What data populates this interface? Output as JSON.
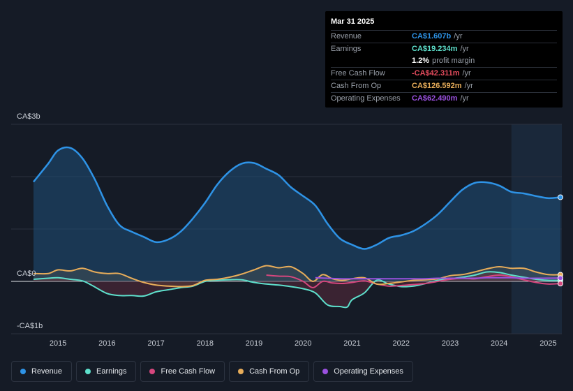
{
  "chart_data": {
    "type": "area",
    "currency": "CA$",
    "y_labels": {
      "top": "CA$3b",
      "zero": "CA$0",
      "bottom": "-CA$1b"
    },
    "ylim": [
      -1.0,
      3.0
    ],
    "xlim": [
      2014.5,
      2025.25
    ],
    "x_ticks": [
      {
        "value": 2015,
        "label": "2015"
      },
      {
        "value": 2016,
        "label": "2016"
      },
      {
        "value": 2017,
        "label": "2017"
      },
      {
        "value": 2018,
        "label": "2018"
      },
      {
        "value": 2019,
        "label": "2019"
      },
      {
        "value": 2020,
        "label": "2020"
      },
      {
        "value": 2021,
        "label": "2021"
      },
      {
        "value": 2022,
        "label": "2022"
      },
      {
        "value": 2023,
        "label": "2023"
      },
      {
        "value": 2024,
        "label": "2024"
      },
      {
        "value": 2025,
        "label": "2025"
      }
    ],
    "highlight_range": [
      2024.25,
      2025.25
    ],
    "series": [
      {
        "name": "Revenue",
        "color": "#2e93e6",
        "fill": true,
        "points": [
          [
            2014.5,
            1.9
          ],
          [
            2014.8,
            2.25
          ],
          [
            2015.0,
            2.5
          ],
          [
            2015.25,
            2.55
          ],
          [
            2015.5,
            2.35
          ],
          [
            2015.75,
            1.95
          ],
          [
            2016.0,
            1.45
          ],
          [
            2016.25,
            1.08
          ],
          [
            2016.5,
            0.95
          ],
          [
            2016.75,
            0.85
          ],
          [
            2017.0,
            0.75
          ],
          [
            2017.25,
            0.8
          ],
          [
            2017.5,
            0.95
          ],
          [
            2017.75,
            1.2
          ],
          [
            2018.0,
            1.5
          ],
          [
            2018.25,
            1.85
          ],
          [
            2018.5,
            2.1
          ],
          [
            2018.75,
            2.25
          ],
          [
            2019.0,
            2.26
          ],
          [
            2019.25,
            2.15
          ],
          [
            2019.5,
            2.03
          ],
          [
            2019.75,
            1.8
          ],
          [
            2020.0,
            1.63
          ],
          [
            2020.25,
            1.45
          ],
          [
            2020.5,
            1.1
          ],
          [
            2020.75,
            0.82
          ],
          [
            2021.0,
            0.7
          ],
          [
            2021.25,
            0.62
          ],
          [
            2021.5,
            0.7
          ],
          [
            2021.75,
            0.83
          ],
          [
            2022.0,
            0.88
          ],
          [
            2022.25,
            0.96
          ],
          [
            2022.5,
            1.1
          ],
          [
            2022.75,
            1.28
          ],
          [
            2023.0,
            1.52
          ],
          [
            2023.25,
            1.75
          ],
          [
            2023.5,
            1.88
          ],
          [
            2023.75,
            1.89
          ],
          [
            2024.0,
            1.83
          ],
          [
            2024.25,
            1.71
          ],
          [
            2024.5,
            1.68
          ],
          [
            2024.75,
            1.63
          ],
          [
            2025.0,
            1.59
          ],
          [
            2025.25,
            1.607
          ]
        ]
      },
      {
        "name": "Earnings",
        "color": "#5ee0cc",
        "fill": true,
        "points": [
          [
            2014.5,
            0.04
          ],
          [
            2014.8,
            0.06
          ],
          [
            2015.0,
            0.07
          ],
          [
            2015.25,
            0.04
          ],
          [
            2015.5,
            0.01
          ],
          [
            2015.7,
            -0.08
          ],
          [
            2016.0,
            -0.23
          ],
          [
            2016.25,
            -0.27
          ],
          [
            2016.5,
            -0.27
          ],
          [
            2016.75,
            -0.28
          ],
          [
            2017.0,
            -0.2
          ],
          [
            2017.25,
            -0.16
          ],
          [
            2017.5,
            -0.12
          ],
          [
            2017.75,
            -0.09
          ],
          [
            2018.0,
            0.0
          ],
          [
            2018.25,
            0.02
          ],
          [
            2018.5,
            0.03
          ],
          [
            2018.75,
            0.03
          ],
          [
            2019.0,
            -0.02
          ],
          [
            2019.25,
            -0.05
          ],
          [
            2019.5,
            -0.07
          ],
          [
            2019.75,
            -0.1
          ],
          [
            2020.0,
            -0.14
          ],
          [
            2020.25,
            -0.22
          ],
          [
            2020.5,
            -0.45
          ],
          [
            2020.75,
            -0.48
          ],
          [
            2020.9,
            -0.49
          ],
          [
            2021.0,
            -0.35
          ],
          [
            2021.25,
            -0.22
          ],
          [
            2021.5,
            0.02
          ],
          [
            2021.75,
            -0.05
          ],
          [
            2022.0,
            -0.1
          ],
          [
            2022.25,
            -0.09
          ],
          [
            2022.5,
            -0.04
          ],
          [
            2022.75,
            0.02
          ],
          [
            2023.0,
            0.05
          ],
          [
            2023.25,
            0.08
          ],
          [
            2023.5,
            0.12
          ],
          [
            2023.75,
            0.18
          ],
          [
            2024.0,
            0.17
          ],
          [
            2024.25,
            0.12
          ],
          [
            2024.5,
            0.08
          ],
          [
            2024.75,
            0.04
          ],
          [
            2025.0,
            0.02
          ],
          [
            2025.25,
            0.019
          ]
        ]
      },
      {
        "name": "Free Cash Flow",
        "color": "#d6477e",
        "fill": false,
        "points": [
          [
            2019.25,
            0.12
          ],
          [
            2019.5,
            0.1
          ],
          [
            2019.75,
            0.09
          ],
          [
            2020.0,
            0.0
          ],
          [
            2020.2,
            -0.12
          ],
          [
            2020.4,
            0.0
          ],
          [
            2020.6,
            -0.03
          ],
          [
            2020.8,
            -0.04
          ],
          [
            2021.0,
            -0.02
          ],
          [
            2021.25,
            0.01
          ],
          [
            2021.5,
            -0.05
          ],
          [
            2021.75,
            -0.09
          ],
          [
            2022.0,
            -0.08
          ],
          [
            2022.25,
            -0.06
          ],
          [
            2022.5,
            -0.04
          ],
          [
            2022.75,
            0.0
          ],
          [
            2023.0,
            0.04
          ],
          [
            2023.25,
            0.06
          ],
          [
            2023.5,
            0.05
          ],
          [
            2023.75,
            0.09
          ],
          [
            2024.0,
            0.12
          ],
          [
            2024.25,
            0.09
          ],
          [
            2024.5,
            0.03
          ],
          [
            2024.75,
            -0.02
          ],
          [
            2025.0,
            -0.05
          ],
          [
            2025.25,
            -0.042
          ]
        ]
      },
      {
        "name": "Cash From Op",
        "color": "#e8ad5a",
        "fill": true,
        "points": [
          [
            2014.5,
            0.15
          ],
          [
            2014.8,
            0.15
          ],
          [
            2015.0,
            0.22
          ],
          [
            2015.25,
            0.2
          ],
          [
            2015.5,
            0.25
          ],
          [
            2015.75,
            0.18
          ],
          [
            2016.0,
            0.15
          ],
          [
            2016.25,
            0.15
          ],
          [
            2016.5,
            0.06
          ],
          [
            2016.75,
            -0.02
          ],
          [
            2017.0,
            -0.07
          ],
          [
            2017.25,
            -0.09
          ],
          [
            2017.5,
            -0.1
          ],
          [
            2017.75,
            -0.08
          ],
          [
            2018.0,
            0.02
          ],
          [
            2018.25,
            0.04
          ],
          [
            2018.5,
            0.08
          ],
          [
            2018.75,
            0.14
          ],
          [
            2019.0,
            0.22
          ],
          [
            2019.25,
            0.3
          ],
          [
            2019.5,
            0.26
          ],
          [
            2019.75,
            0.28
          ],
          [
            2020.0,
            0.15
          ],
          [
            2020.2,
            0.0
          ],
          [
            2020.4,
            0.13
          ],
          [
            2020.6,
            0.05
          ],
          [
            2020.8,
            0.02
          ],
          [
            2021.0,
            0.05
          ],
          [
            2021.25,
            0.07
          ],
          [
            2021.5,
            -0.05
          ],
          [
            2021.75,
            -0.04
          ],
          [
            2022.0,
            -0.01
          ],
          [
            2022.25,
            0.02
          ],
          [
            2022.5,
            0.03
          ],
          [
            2022.75,
            0.05
          ],
          [
            2023.0,
            0.11
          ],
          [
            2023.25,
            0.13
          ],
          [
            2023.5,
            0.18
          ],
          [
            2023.75,
            0.24
          ],
          [
            2024.0,
            0.28
          ],
          [
            2024.25,
            0.25
          ],
          [
            2024.5,
            0.25
          ],
          [
            2024.75,
            0.18
          ],
          [
            2025.0,
            0.13
          ],
          [
            2025.25,
            0.127
          ]
        ]
      },
      {
        "name": "Operating Expenses",
        "color": "#9b51e0",
        "fill": false,
        "points": [
          [
            2020.25,
            0.07
          ],
          [
            2020.5,
            0.06
          ],
          [
            2020.75,
            0.05
          ],
          [
            2021.0,
            0.05
          ],
          [
            2021.25,
            0.05
          ],
          [
            2021.5,
            0.05
          ],
          [
            2021.75,
            0.05
          ],
          [
            2022.0,
            0.05
          ],
          [
            2022.25,
            0.05
          ],
          [
            2022.5,
            0.05
          ],
          [
            2022.75,
            0.06
          ],
          [
            2023.0,
            0.06
          ],
          [
            2023.25,
            0.06
          ],
          [
            2023.5,
            0.06
          ],
          [
            2023.75,
            0.07
          ],
          [
            2024.0,
            0.07
          ],
          [
            2024.25,
            0.07
          ],
          [
            2024.5,
            0.06
          ],
          [
            2024.75,
            0.06
          ],
          [
            2025.0,
            0.062
          ],
          [
            2025.25,
            0.0625
          ]
        ]
      }
    ]
  },
  "tooltip": {
    "date": "Mar 31 2025",
    "rows": [
      {
        "label": "Revenue",
        "value": "CA$1.607b",
        "unit": "/yr",
        "color": "#2e93e6"
      },
      {
        "label": "Earnings",
        "value": "CA$19.234m",
        "unit": "/yr",
        "color": "#5ee0cc"
      },
      {
        "label": "",
        "value": "1.2%",
        "unit": "profit margin",
        "color": "#ffffff"
      },
      {
        "label": "Free Cash Flow",
        "value": "-CA$42.311m",
        "unit": "/yr",
        "color": "#e64c5e"
      },
      {
        "label": "Cash From Op",
        "value": "CA$126.592m",
        "unit": "/yr",
        "color": "#e8ad5a"
      },
      {
        "label": "Operating Expenses",
        "value": "CA$62.490m",
        "unit": "/yr",
        "color": "#9b51e0"
      }
    ]
  },
  "legend": [
    {
      "label": "Revenue",
      "color": "#2e93e6"
    },
    {
      "label": "Earnings",
      "color": "#5ee0cc"
    },
    {
      "label": "Free Cash Flow",
      "color": "#d6477e"
    },
    {
      "label": "Cash From Op",
      "color": "#e8ad5a"
    },
    {
      "label": "Operating Expenses",
      "color": "#9b51e0"
    }
  ]
}
